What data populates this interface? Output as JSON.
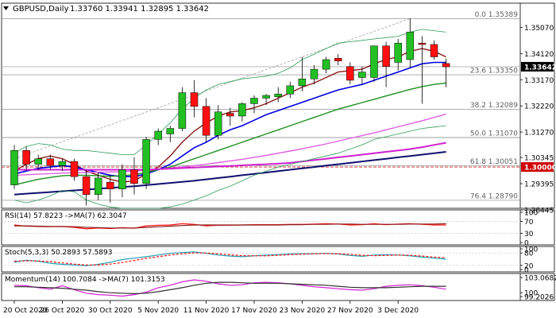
{
  "header": {
    "symbol": "GBPUSD,Daily",
    "ohlc": "1.33760 1.33941 1.32895 1.33642"
  },
  "colors": {
    "bull": "#22c022",
    "bear": "#ff1010",
    "ma_dark_red": "#8b1a1a",
    "ma_blue": "#0000e0",
    "ma_green": "#1e8f1e",
    "ma_violet": "#e060e0",
    "ma_navy": "#101070",
    "magenta": "#d020d0",
    "bollinger": "#2e9e5a",
    "fib_line": "#808080",
    "level_red": "#d02020",
    "price_tag_bg": "#000000",
    "level_tag_bg": "#d00000",
    "osc_cyan": "#20a0b0",
    "osc_dark": "#303030"
  },
  "chart_data": [
    {
      "type": "candlestick",
      "name": "price",
      "y_range": [
        1.285,
        1.3595
      ],
      "y_ticks": [
        {
          "value": 1.3507,
          "label": "1.35070"
        },
        {
          "value": 1.3412,
          "label": "1.34120"
        },
        {
          "value": 1.3317,
          "label": "1.33170"
        },
        {
          "value": 1.3222,
          "label": "1.32220"
        },
        {
          "value": 1.3127,
          "label": "1.31270"
        },
        {
          "value": 1.30345,
          "label": "1.30345"
        },
        {
          "value": 1.29395,
          "label": "1.29395"
        },
        {
          "value": 1.28445,
          "label": "1.28445"
        }
      ],
      "current_price": {
        "value": 1.33642,
        "label": "1.33642"
      },
      "key_level": {
        "value": 1.3,
        "label": "1.30000"
      },
      "fib_levels": [
        {
          "value": 1.35389,
          "label": "0.0 1.35389"
        },
        {
          "value": 1.3335,
          "label": "23.6 1.33350"
        },
        {
          "value": 1.32089,
          "label": "38.2 1.32089"
        },
        {
          "value": 1.3107,
          "label": "50.0 1.31070"
        },
        {
          "value": 1.30051,
          "label": "61.8 1.30051"
        },
        {
          "value": 1.2879,
          "label": "76.4 1.28790"
        }
      ],
      "x_labels": [
        {
          "index": 0,
          "label": "20 Oct 2020"
        },
        {
          "index": 4,
          "label": "26 Oct 2020"
        },
        {
          "index": 8,
          "label": "30 Oct 2020"
        },
        {
          "index": 12,
          "label": "5 Nov 2020"
        },
        {
          "index": 16,
          "label": "11 Nov 2020"
        },
        {
          "index": 20,
          "label": "17 Nov 2020"
        },
        {
          "index": 24,
          "label": "23 Nov 2020"
        },
        {
          "index": 28,
          "label": "27 Nov 2020"
        },
        {
          "index": 32,
          "label": "3 Dec 2020"
        }
      ],
      "candles": [
        {
          "o": 1.2935,
          "h": 1.308,
          "l": 1.292,
          "c": 1.306
        },
        {
          "o": 1.306,
          "h": 1.3075,
          "l": 1.299,
          "c": 1.301
        },
        {
          "o": 1.301,
          "h": 1.3045,
          "l": 1.299,
          "c": 1.303
        },
        {
          "o": 1.303,
          "h": 1.3045,
          "l": 1.299,
          "c": 1.3005
        },
        {
          "o": 1.3005,
          "h": 1.303,
          "l": 1.2985,
          "c": 1.302
        },
        {
          "o": 1.302,
          "h": 1.303,
          "l": 1.295,
          "c": 1.2965
        },
        {
          "o": 1.2965,
          "h": 1.299,
          "l": 1.286,
          "c": 1.29
        },
        {
          "o": 1.29,
          "h": 1.298,
          "l": 1.288,
          "c": 1.296
        },
        {
          "o": 1.2945,
          "h": 1.297,
          "l": 1.287,
          "c": 1.292
        },
        {
          "o": 1.292,
          "h": 1.301,
          "l": 1.289,
          "c": 1.299
        },
        {
          "o": 1.299,
          "h": 1.3035,
          "l": 1.29,
          "c": 1.294
        },
        {
          "o": 1.294,
          "h": 1.311,
          "l": 1.292,
          "c": 1.31
        },
        {
          "o": 1.31,
          "h": 1.314,
          "l": 1.308,
          "c": 1.313
        },
        {
          "o": 1.312,
          "h": 1.315,
          "l": 1.309,
          "c": 1.314
        },
        {
          "o": 1.314,
          "h": 1.329,
          "l": 1.313,
          "c": 1.327
        },
        {
          "o": 1.327,
          "h": 1.3315,
          "l": 1.318,
          "c": 1.322
        },
        {
          "o": 1.322,
          "h": 1.325,
          "l": 1.309,
          "c": 1.3115
        },
        {
          "o": 1.3115,
          "h": 1.3225,
          "l": 1.31,
          "c": 1.32
        },
        {
          "o": 1.3195,
          "h": 1.3215,
          "l": 1.315,
          "c": 1.3185
        },
        {
          "o": 1.3185,
          "h": 1.3235,
          "l": 1.3165,
          "c": 1.323
        },
        {
          "o": 1.323,
          "h": 1.326,
          "l": 1.3195,
          "c": 1.325
        },
        {
          "o": 1.325,
          "h": 1.3265,
          "l": 1.3225,
          "c": 1.326
        },
        {
          "o": 1.3255,
          "h": 1.329,
          "l": 1.3235,
          "c": 1.3265
        },
        {
          "o": 1.3265,
          "h": 1.331,
          "l": 1.325,
          "c": 1.3295
        },
        {
          "o": 1.3295,
          "h": 1.34,
          "l": 1.3275,
          "c": 1.332
        },
        {
          "o": 1.332,
          "h": 1.337,
          "l": 1.33,
          "c": 1.3355
        },
        {
          "o": 1.3355,
          "h": 1.34,
          "l": 1.334,
          "c": 1.339
        },
        {
          "o": 1.3395,
          "h": 1.341,
          "l": 1.337,
          "c": 1.3385
        },
        {
          "o": 1.3365,
          "h": 1.338,
          "l": 1.33,
          "c": 1.3315
        },
        {
          "o": 1.3325,
          "h": 1.3365,
          "l": 1.33,
          "c": 1.3345
        },
        {
          "o": 1.3325,
          "h": 1.344,
          "l": 1.331,
          "c": 1.344
        },
        {
          "o": 1.344,
          "h": 1.3455,
          "l": 1.329,
          "c": 1.3365
        },
        {
          "o": 1.338,
          "h": 1.3465,
          "l": 1.335,
          "c": 1.345
        },
        {
          "o": 1.339,
          "h": 1.354,
          "l": 1.336,
          "c": 1.349
        },
        {
          "o": 1.345,
          "h": 1.3475,
          "l": 1.323,
          "c": 1.3445
        },
        {
          "o": 1.3445,
          "h": 1.346,
          "l": 1.339,
          "c": 1.34
        },
        {
          "o": 1.3376,
          "h": 1.3394,
          "l": 1.329,
          "c": 1.3364
        }
      ],
      "overlays": [
        {
          "id": "ma-dark-red",
          "color_key": "ma_dark_red",
          "width": 1.4,
          "values": [
            1.2985,
            1.301,
            1.303,
            1.304,
            1.303,
            1.301,
            1.2985,
            1.297,
            1.2955,
            1.2945,
            1.295,
            1.2975,
            1.3,
            1.304,
            1.309,
            1.313,
            1.316,
            1.3185,
            1.32,
            1.3205,
            1.3215,
            1.323,
            1.325,
            1.327,
            1.329,
            1.3305,
            1.3325,
            1.3345,
            1.335,
            1.3355,
            1.3375,
            1.339,
            1.34,
            1.342,
            1.343,
            1.342,
            1.34
          ]
        },
        {
          "id": "ma-blue",
          "color_key": "ma_blue",
          "width": 1.6,
          "values": [
            1.2975,
            1.2985,
            1.2995,
            1.3,
            1.3005,
            1.3,
            1.299,
            1.298,
            1.297,
            1.2965,
            1.2965,
            1.2975,
            1.299,
            1.301,
            1.304,
            1.307,
            1.309,
            1.3115,
            1.3135,
            1.315,
            1.317,
            1.319,
            1.3205,
            1.322,
            1.3235,
            1.325,
            1.3265,
            1.328,
            1.329,
            1.33,
            1.3315,
            1.333,
            1.3345,
            1.336,
            1.3375,
            1.338,
            1.338
          ]
        },
        {
          "id": "ma-green",
          "color_key": "ma_green",
          "width": 1.4,
          "values": [
            1.2935,
            1.2945,
            1.2955,
            1.2962,
            1.2968,
            1.297,
            1.297,
            1.2968,
            1.2966,
            1.2968,
            1.2972,
            1.298,
            1.299,
            1.3,
            1.3015,
            1.303,
            1.3045,
            1.306,
            1.3075,
            1.309,
            1.3105,
            1.312,
            1.3135,
            1.315,
            1.3165,
            1.318,
            1.3195,
            1.321,
            1.3222,
            1.3234,
            1.3246,
            1.3258,
            1.327,
            1.3282,
            1.3292,
            1.33,
            1.3305
          ]
        },
        {
          "id": "ma-violet",
          "color_key": "ma_violet",
          "width": 1.4,
          "values": [
            1.297,
            1.2972,
            1.2974,
            1.2976,
            1.2978,
            1.2979,
            1.298,
            1.2981,
            1.2982,
            1.2983,
            1.2985,
            1.2988,
            1.2992,
            1.2996,
            1.3,
            1.3005,
            1.301,
            1.3016,
            1.3022,
            1.3028,
            1.3035,
            1.3042,
            1.305,
            1.3058,
            1.3066,
            1.3075,
            1.3084,
            1.3094,
            1.3104,
            1.3114,
            1.3124,
            1.3135,
            1.3146,
            1.3157,
            1.3168,
            1.318,
            1.3192
          ]
        },
        {
          "id": "ma-navy",
          "color_key": "ma_navy",
          "width": 2.0,
          "values": [
            1.29,
            1.2903,
            1.2906,
            1.2909,
            1.2912,
            1.2915,
            1.2918,
            1.2921,
            1.2924,
            1.2927,
            1.293,
            1.2934,
            1.2938,
            1.2942,
            1.2946,
            1.295,
            1.2955,
            1.296,
            1.2965,
            1.297,
            1.2975,
            1.298,
            1.2985,
            1.299,
            1.2995,
            1.3,
            1.3005,
            1.301,
            1.3015,
            1.302,
            1.3025,
            1.303,
            1.3035,
            1.304,
            1.3045,
            1.305,
            1.3055
          ]
        },
        {
          "id": "magenta-line",
          "color_key": "magenta",
          "width": 2.0,
          "values": [
            1.299,
            1.299,
            1.299,
            1.299,
            1.299,
            1.299,
            1.299,
            1.299,
            1.299,
            1.299,
            1.299,
            1.299,
            1.2992,
            1.2994,
            1.2996,
            1.2998,
            1.3,
            1.3002,
            1.3004,
            1.3006,
            1.3008,
            1.301,
            1.3012,
            1.3015,
            1.302,
            1.3025,
            1.303,
            1.3035,
            1.304,
            1.3045,
            1.305,
            1.3055,
            1.306,
            1.3065,
            1.3072,
            1.308,
            1.3088
          ]
        },
        {
          "id": "bollinger-upper",
          "color_key": "bollinger",
          "width": 0.8,
          "values": [
            1.305,
            1.3075,
            1.3085,
            1.308,
            1.3065,
            1.306,
            1.306,
            1.3055,
            1.305,
            1.3045,
            1.3045,
            1.308,
            1.312,
            1.316,
            1.321,
            1.325,
            1.328,
            1.33,
            1.331,
            1.332,
            1.3325,
            1.333,
            1.334,
            1.336,
            1.339,
            1.341,
            1.343,
            1.345,
            1.3455,
            1.346,
            1.3465,
            1.347,
            1.3475,
            1.349,
            1.35,
            1.3495,
            1.349
          ]
        },
        {
          "id": "bollinger-lower",
          "color_key": "bollinger",
          "width": 0.8,
          "values": [
            1.288,
            1.287,
            1.288,
            1.2895,
            1.2915,
            1.291,
            1.288,
            1.2865,
            1.2855,
            1.285,
            1.285,
            1.285,
            1.285,
            1.2855,
            1.2865,
            1.288,
            1.2895,
            1.2915,
            1.293,
            1.295,
            1.297,
            1.2985,
            1.3,
            1.301,
            1.302,
            1.303,
            1.304,
            1.305,
            1.3065,
            1.308,
            1.31,
            1.311,
            1.312,
            1.313,
            1.314,
            1.3145,
            1.315
          ]
        }
      ]
    },
    {
      "type": "line",
      "name": "rsi",
      "label": "RSI(14) 57.8223 ->MA(7) 62.3047",
      "y_range": [
        0,
        100
      ],
      "y_ticks": [
        {
          "value": 100,
          "label": "100"
        },
        {
          "value": 70,
          "label": "70"
        },
        {
          "value": 30,
          "label": "30"
        },
        {
          "value": 0,
          "label": "0"
        }
      ],
      "series": [
        {
          "color_key": "bear",
          "values": [
            58,
            54,
            53,
            52,
            53,
            50,
            45,
            48,
            46,
            49,
            47,
            55,
            57,
            58,
            62,
            60,
            55,
            57,
            57,
            58,
            59,
            59,
            59,
            60,
            60,
            61,
            62,
            61,
            58,
            59,
            62,
            59,
            61,
            62,
            60,
            58,
            58
          ]
        },
        {
          "color_key": "ma_dark_red",
          "values": [
            55,
            55,
            54,
            53,
            53,
            52,
            50,
            49,
            48,
            48,
            48,
            50,
            52,
            54,
            56,
            58,
            58,
            58,
            58,
            58,
            58,
            58,
            58,
            59,
            59,
            60,
            60,
            61,
            61,
            60,
            60,
            60,
            60,
            61,
            61,
            61,
            62
          ]
        }
      ]
    },
    {
      "type": "line",
      "name": "stochastic",
      "label": "Stoch(5,3,3) 50.2893 57.5893",
      "y_range": [
        0,
        100
      ],
      "y_ticks": [
        {
          "value": 100,
          "label": "100"
        },
        {
          "value": 80,
          "label": "80"
        },
        {
          "value": 20,
          "label": "20"
        },
        {
          "value": 0,
          "label": "0"
        }
      ],
      "series": [
        {
          "color_key": "osc_cyan",
          "values": [
            35,
            45,
            40,
            30,
            25,
            22,
            18,
            25,
            35,
            48,
            55,
            62,
            70,
            78,
            82,
            85,
            78,
            70,
            65,
            62,
            66,
            70,
            72,
            75,
            76,
            76,
            78,
            75,
            68,
            64,
            70,
            72,
            70,
            66,
            60,
            55,
            50
          ]
        },
        {
          "color_key": "bear",
          "values": [
            40,
            42,
            41,
            38,
            32,
            26,
            22,
            22,
            26,
            34,
            44,
            54,
            62,
            70,
            76,
            80,
            80,
            76,
            71,
            67,
            66,
            66,
            69,
            72,
            74,
            76,
            77,
            76,
            73,
            69,
            67,
            68,
            70,
            69,
            65,
            60,
            57
          ]
        }
      ]
    },
    {
      "type": "line",
      "name": "momentum",
      "label": "Momentum(14) 100.7084 ->MA(7) 101.3153",
      "y_range": [
        98.9,
        103.4
      ],
      "y_ticks": [
        {
          "value": 103.0682,
          "label": "103.0682"
        },
        {
          "value": 100,
          "label": "100"
        },
        {
          "value": 99.2026,
          "label": "99.2026"
        }
      ],
      "series": [
        {
          "color_key": "magenta",
          "values": [
            101.5,
            101.4,
            101.0,
            100.7,
            101.4,
            100.6,
            99.9,
            99.6,
            99.5,
            99.3,
            99.6,
            100.1,
            101.0,
            101.5,
            102.2,
            102.6,
            102.3,
            101.8,
            101.5,
            101.6,
            102.0,
            102.1,
            102.0,
            101.8,
            101.5,
            101.2,
            101.0,
            100.8,
            100.6,
            100.5,
            100.8,
            101.3,
            101.5,
            101.6,
            101.4,
            101.1,
            100.7
          ]
        },
        {
          "color_key": "osc_dark",
          "values": [
            101.2,
            101.2,
            101.1,
            101.0,
            100.9,
            100.7,
            100.5,
            100.2,
            100.0,
            99.9,
            99.8,
            99.9,
            100.2,
            100.6,
            101.0,
            101.5,
            101.9,
            102.1,
            102.1,
            102.0,
            101.9,
            101.9,
            101.9,
            101.8,
            101.7,
            101.6,
            101.5,
            101.3,
            101.1,
            101.0,
            101.0,
            101.0,
            101.1,
            101.2,
            101.3,
            101.3,
            101.3
          ]
        }
      ]
    }
  ]
}
